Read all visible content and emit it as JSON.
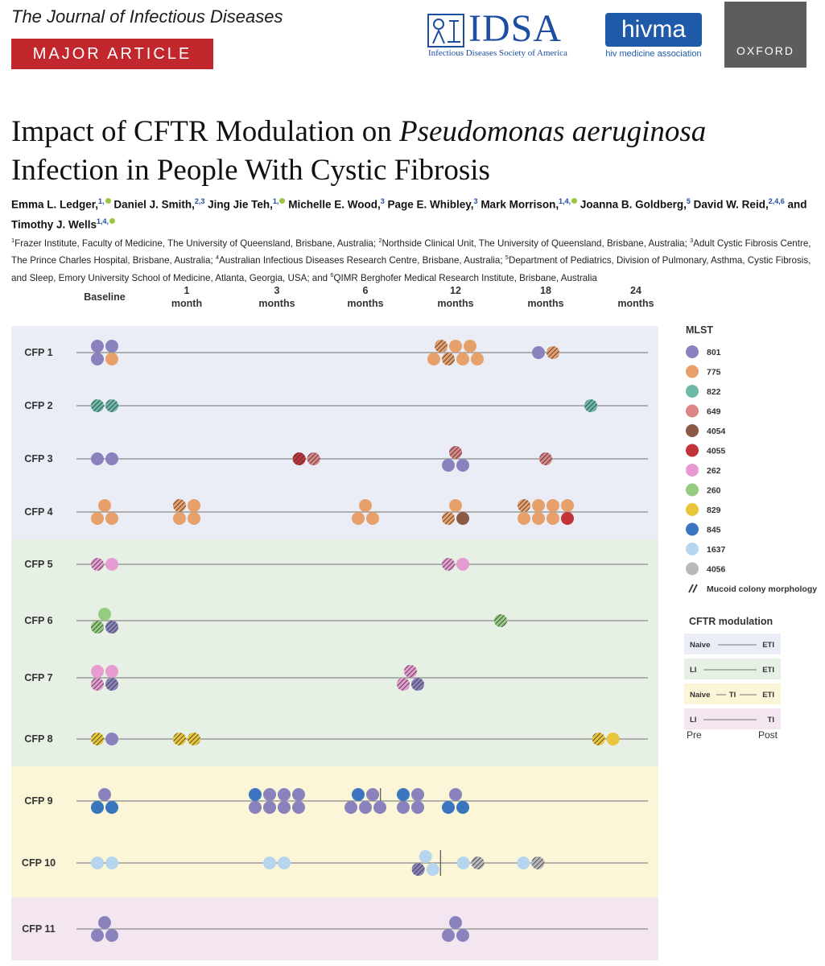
{
  "header": {
    "journal": "The Journal of Infectious Diseases",
    "badge": "MAJOR ARTICLE",
    "logos": {
      "idsa_word": "IDSA",
      "idsa_sub": "Infectious Diseases Society of America",
      "hivma_word": "hivma",
      "hivma_sub": "hiv medicine association",
      "oxford": "OXFORD"
    }
  },
  "article": {
    "title_plain": "Impact of CFTR Modulation on ",
    "title_italic": "Pseudomonas aeruginosa",
    "title_rest": "Infection in People With Cystic Fibrosis",
    "authors": [
      {
        "name": "Emma L. Ledger,",
        "aff": "1,",
        "orcid": true
      },
      {
        "name": "Daniel J. Smith,",
        "aff": "2,3",
        "orcid": false
      },
      {
        "name": "Jing Jie Teh,",
        "aff": "1,",
        "orcid": true
      },
      {
        "name": "Michelle E. Wood,",
        "aff": "3",
        "orcid": false
      },
      {
        "name": "Page E. Whibley,",
        "aff": "3",
        "orcid": false
      },
      {
        "name": "Mark Morrison,",
        "aff": "1,4,",
        "orcid": true
      },
      {
        "name": "Joanna B. Goldberg,",
        "aff": "5",
        "orcid": false
      },
      {
        "name": "David W. Reid,",
        "aff": "2,4,6",
        "orcid": false
      },
      {
        "name": "and Timothy J. Wells",
        "aff": "1,4,",
        "orcid": true
      }
    ],
    "affiliations": [
      {
        "n": "1",
        "text": "Frazer Institute, Faculty of Medicine, The University of Queensland, Brisbane, Australia; "
      },
      {
        "n": "2",
        "text": "Northside Clinical Unit, The University of Queensland, Brisbane, Australia; "
      },
      {
        "n": "3",
        "text": "Adult Cystic Fibrosis Centre, The Prince Charles Hospital, Brisbane, Australia; "
      },
      {
        "n": "4",
        "text": "Australian Infectious Diseases Research Centre, Brisbane, Australia; "
      },
      {
        "n": "5",
        "text": "Department of Pediatrics, Division of Pulmonary, Asthma, Cystic Fibrosis, and Sleep, Emory University School of Medicine, Atlanta, Georgia, USA; and "
      },
      {
        "n": "6",
        "text": "QIMR Berghofer Medical Research Institute, Brisbane, Australia"
      }
    ]
  },
  "chart_data": {
    "type": "scatter",
    "x_labels": [
      {
        "t": 0,
        "lines": [
          "Baseline"
        ]
      },
      {
        "t": 1,
        "lines": [
          "1",
          "month"
        ]
      },
      {
        "t": 3,
        "lines": [
          "3",
          "months"
        ]
      },
      {
        "t": 6,
        "lines": [
          "6",
          "months"
        ]
      },
      {
        "t": 12,
        "lines": [
          "12",
          "months"
        ]
      },
      {
        "t": 18,
        "lines": [
          "18",
          "months"
        ]
      },
      {
        "t": 24,
        "lines": [
          "24",
          "months"
        ]
      }
    ],
    "groups": [
      {
        "modulation": "Naive-ETI",
        "color": "#eaedf6",
        "rows": 4
      },
      {
        "modulation": "LI-ETI",
        "color": "#e6f0e5",
        "rows": 4
      },
      {
        "modulation": "Naive-TI-ETI",
        "color": "#fbf6d8",
        "rows": 2
      },
      {
        "modulation": "LI-TI",
        "color": "#f3e6f1",
        "rows": 1
      }
    ],
    "patients": [
      {
        "label": "CFP 1",
        "switch": null,
        "obs": [
          {
            "t": 0,
            "isolates": [
              {
                "st": "801"
              },
              {
                "st": "801"
              },
              {
                "st": "801"
              },
              {
                "st": "775"
              }
            ]
          },
          {
            "t": 12,
            "isolates": [
              {
                "st": "775",
                "m": true
              },
              {
                "st": "775"
              },
              {
                "st": "775"
              },
              {
                "st": "775"
              },
              {
                "st": "775",
                "m": true
              },
              {
                "st": "775"
              },
              {
                "st": "775"
              }
            ]
          },
          {
            "t": 18,
            "isolates": [
              {
                "st": "801"
              },
              {
                "st": "775",
                "m": true
              }
            ]
          }
        ]
      },
      {
        "label": "CFP 2",
        "switch": null,
        "obs": [
          {
            "t": 0,
            "isolates": [
              {
                "st": "822",
                "m": true
              },
              {
                "st": "822",
                "m": true
              }
            ]
          },
          {
            "t": 21,
            "isolates": [
              {
                "st": "822",
                "m": true
              }
            ]
          }
        ]
      },
      {
        "label": "CFP 3",
        "switch": null,
        "obs": [
          {
            "t": 0,
            "isolates": [
              {
                "st": "801"
              },
              {
                "st": "801"
              }
            ]
          },
          {
            "t": 4,
            "isolates": [
              {
                "st": "4055",
                "m": true
              },
              {
                "st": "649",
                "m": true
              }
            ]
          },
          {
            "t": 12,
            "isolates": [
              {
                "st": "649",
                "m": true
              },
              {
                "st": "801"
              },
              {
                "st": "801"
              }
            ]
          },
          {
            "t": 18,
            "isolates": [
              {
                "st": "649",
                "m": true
              }
            ]
          }
        ]
      },
      {
        "label": "CFP 4",
        "switch": null,
        "obs": [
          {
            "t": 0,
            "isolates": [
              {
                "st": "775"
              },
              {
                "st": "775"
              },
              {
                "st": "775"
              }
            ]
          },
          {
            "t": 1,
            "isolates": [
              {
                "st": "775",
                "m": true
              },
              {
                "st": "775"
              },
              {
                "st": "775"
              },
              {
                "st": "775"
              }
            ]
          },
          {
            "t": 6,
            "isolates": [
              {
                "st": "775"
              },
              {
                "st": "775"
              },
              {
                "st": "775"
              }
            ]
          },
          {
            "t": 12,
            "isolates": [
              {
                "st": "775"
              },
              {
                "st": "775",
                "m": true
              },
              {
                "st": "4054"
              }
            ]
          },
          {
            "t": 18,
            "isolates": [
              {
                "st": "775",
                "m": true
              },
              {
                "st": "775"
              },
              {
                "st": "775"
              },
              {
                "st": "775"
              },
              {
                "st": "775"
              },
              {
                "st": "775"
              },
              {
                "st": "775"
              },
              {
                "st": "4055"
              }
            ]
          }
        ]
      },
      {
        "label": "CFP 5",
        "switch": null,
        "obs": [
          {
            "t": 0,
            "isolates": [
              {
                "st": "262",
                "m": true
              },
              {
                "st": "262"
              }
            ]
          },
          {
            "t": 12,
            "isolates": [
              {
                "st": "262",
                "m": true
              },
              {
                "st": "262"
              }
            ]
          }
        ]
      },
      {
        "label": "CFP 6",
        "switch": null,
        "obs": [
          {
            "t": 0,
            "isolates": [
              {
                "st": "260"
              },
              {
                "st": "260",
                "m": true
              },
              {
                "st": "801",
                "m": true
              }
            ]
          },
          {
            "t": 15,
            "isolates": [
              {
                "st": "260",
                "m": true
              }
            ]
          }
        ]
      },
      {
        "label": "CFP 7",
        "switch": null,
        "obs": [
          {
            "t": 0,
            "isolates": [
              {
                "st": "262"
              },
              {
                "st": "262"
              },
              {
                "st": "262",
                "m": true
              },
              {
                "st": "801",
                "m": true
              }
            ]
          },
          {
            "t": 9,
            "isolates": [
              {
                "st": "262",
                "m": true
              },
              {
                "st": "262",
                "m": true
              },
              {
                "st": "801",
                "m": true
              }
            ]
          }
        ]
      },
      {
        "label": "CFP 8",
        "switch": null,
        "obs": [
          {
            "t": 0,
            "isolates": [
              {
                "st": "829",
                "m": true
              },
              {
                "st": "801"
              }
            ]
          },
          {
            "t": 1,
            "isolates": [
              {
                "st": "829",
                "m": true
              },
              {
                "st": "829",
                "m": true
              }
            ]
          },
          {
            "t": 22,
            "isolates": [
              {
                "st": "829",
                "m": true
              },
              {
                "st": "829"
              }
            ]
          }
        ]
      },
      {
        "label": "CFP 9",
        "switch": 7,
        "obs": [
          {
            "t": 0,
            "isolates": [
              {
                "st": "801"
              },
              {
                "st": "845"
              },
              {
                "st": "845"
              }
            ]
          },
          {
            "t": 3,
            "isolates": [
              {
                "st": "845"
              },
              {
                "st": "801"
              },
              {
                "st": "801"
              },
              {
                "st": "801"
              },
              {
                "st": "801"
              },
              {
                "st": "801"
              },
              {
                "st": "801"
              },
              {
                "st": "801"
              }
            ]
          },
          {
            "t": 6,
            "isolates": [
              {
                "st": "845"
              },
              {
                "st": "801"
              },
              {
                "st": "801"
              },
              {
                "st": "801"
              },
              {
                "st": "801"
              }
            ]
          },
          {
            "t": 9,
            "isolates": [
              {
                "st": "845"
              },
              {
                "st": "801"
              },
              {
                "st": "801"
              },
              {
                "st": "801"
              }
            ]
          },
          {
            "t": 12,
            "isolates": [
              {
                "st": "801"
              },
              {
                "st": "845"
              },
              {
                "st": "845"
              }
            ]
          }
        ]
      },
      {
        "label": "CFP 10",
        "switch": 11,
        "obs": [
          {
            "t": 0,
            "isolates": [
              {
                "st": "1637"
              },
              {
                "st": "1637"
              }
            ]
          },
          {
            "t": 3,
            "isolates": [
              {
                "st": "1637"
              },
              {
                "st": "1637"
              }
            ]
          },
          {
            "t": 10,
            "isolates": [
              {
                "st": "1637"
              },
              {
                "st": "801",
                "m": true
              },
              {
                "st": "1637"
              }
            ]
          },
          {
            "t": 13,
            "isolates": [
              {
                "st": "1637"
              },
              {
                "st": "4056",
                "m": true
              }
            ]
          },
          {
            "t": 17,
            "isolates": [
              {
                "st": "1637"
              },
              {
                "st": "4056",
                "m": true
              }
            ]
          }
        ]
      },
      {
        "label": "CFP 11",
        "switch": null,
        "obs": [
          {
            "t": 0,
            "isolates": [
              {
                "st": "801"
              },
              {
                "st": "801"
              },
              {
                "st": "801"
              }
            ]
          },
          {
            "t": 12,
            "isolates": [
              {
                "st": "801"
              },
              {
                "st": "801"
              },
              {
                "st": "801"
              }
            ]
          }
        ]
      }
    ],
    "legend": {
      "title": "MLST",
      "items": [
        {
          "st": "801",
          "color": "#8a82bd"
        },
        {
          "st": "775",
          "color": "#e8a06a"
        },
        {
          "st": "822",
          "color": "#6cb9a7"
        },
        {
          "st": "649",
          "color": "#dc8585"
        },
        {
          "st": "4054",
          "color": "#8c5a44"
        },
        {
          "st": "4055",
          "color": "#c1353a"
        },
        {
          "st": "262",
          "color": "#e69bd1"
        },
        {
          "st": "260",
          "color": "#96cc7f"
        },
        {
          "st": "829",
          "color": "#e8c53a"
        },
        {
          "st": "845",
          "color": "#3a76c0"
        },
        {
          "st": "1637",
          "color": "#b6d5ef"
        },
        {
          "st": "4056",
          "color": "#b9b9bc"
        }
      ],
      "mucoid_label": "Mucoid colony morphology"
    },
    "cftr_legend": {
      "title": "CFTR modulation",
      "rows": [
        {
          "left": "Naive",
          "mid": "",
          "right": "ETI",
          "color": "#eaedf6"
        },
        {
          "left": "LI",
          "mid": "",
          "right": "ETI",
          "color": "#e6f0e5"
        },
        {
          "left": "Naive",
          "mid": "TI",
          "right": "ETI",
          "color": "#fbf6d8"
        },
        {
          "left": "LI",
          "mid": "",
          "right": "TI",
          "color": "#f3e6f1"
        }
      ],
      "pre": "Pre",
      "post": "Post"
    }
  }
}
